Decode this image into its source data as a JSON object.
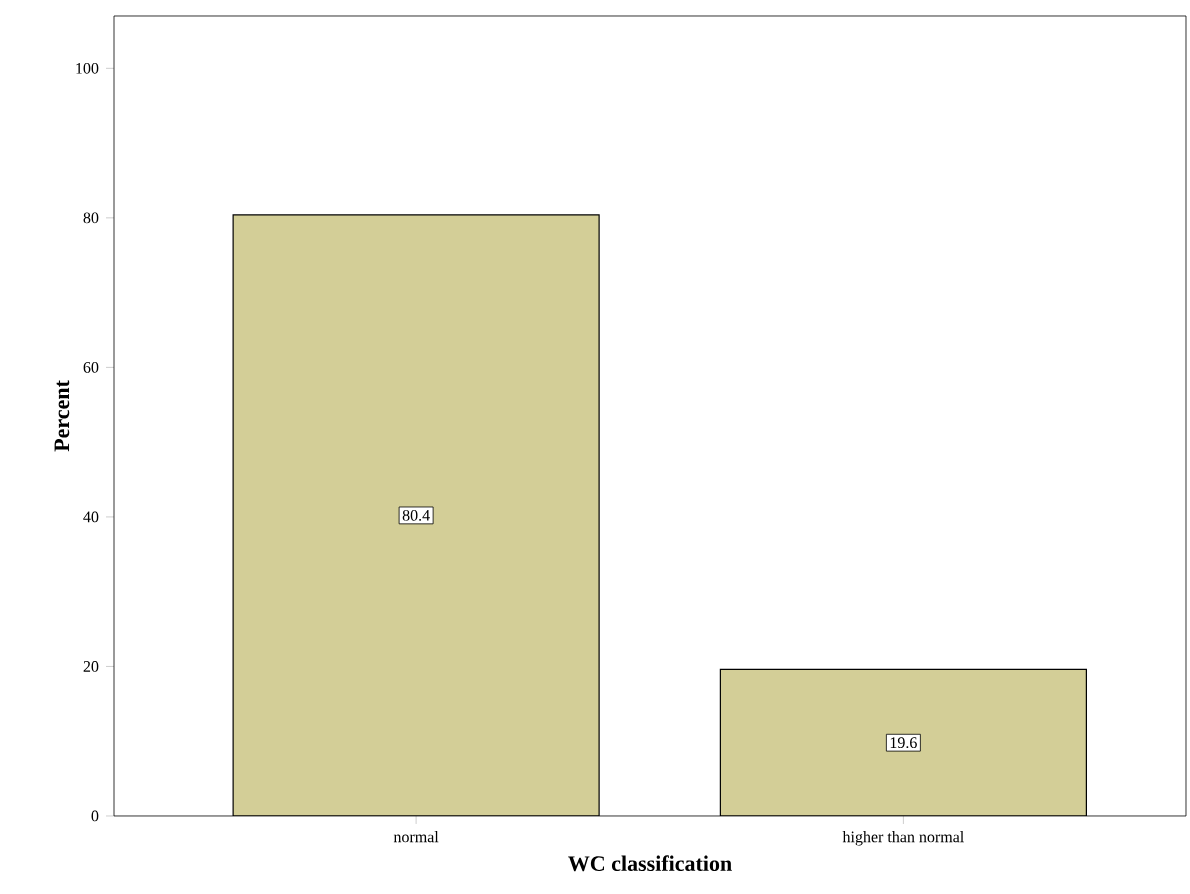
{
  "chart_data": {
    "type": "bar",
    "xlabel": "WC classification",
    "ylabel": "Percent",
    "categories": [
      "normal",
      "higher than normal"
    ],
    "values": [
      80.4,
      19.6
    ],
    "color": "#d3ce97",
    "data_labels": true,
    "ylim": [
      0,
      107
    ],
    "yticks": [
      0,
      20,
      40,
      60,
      80,
      100
    ]
  }
}
